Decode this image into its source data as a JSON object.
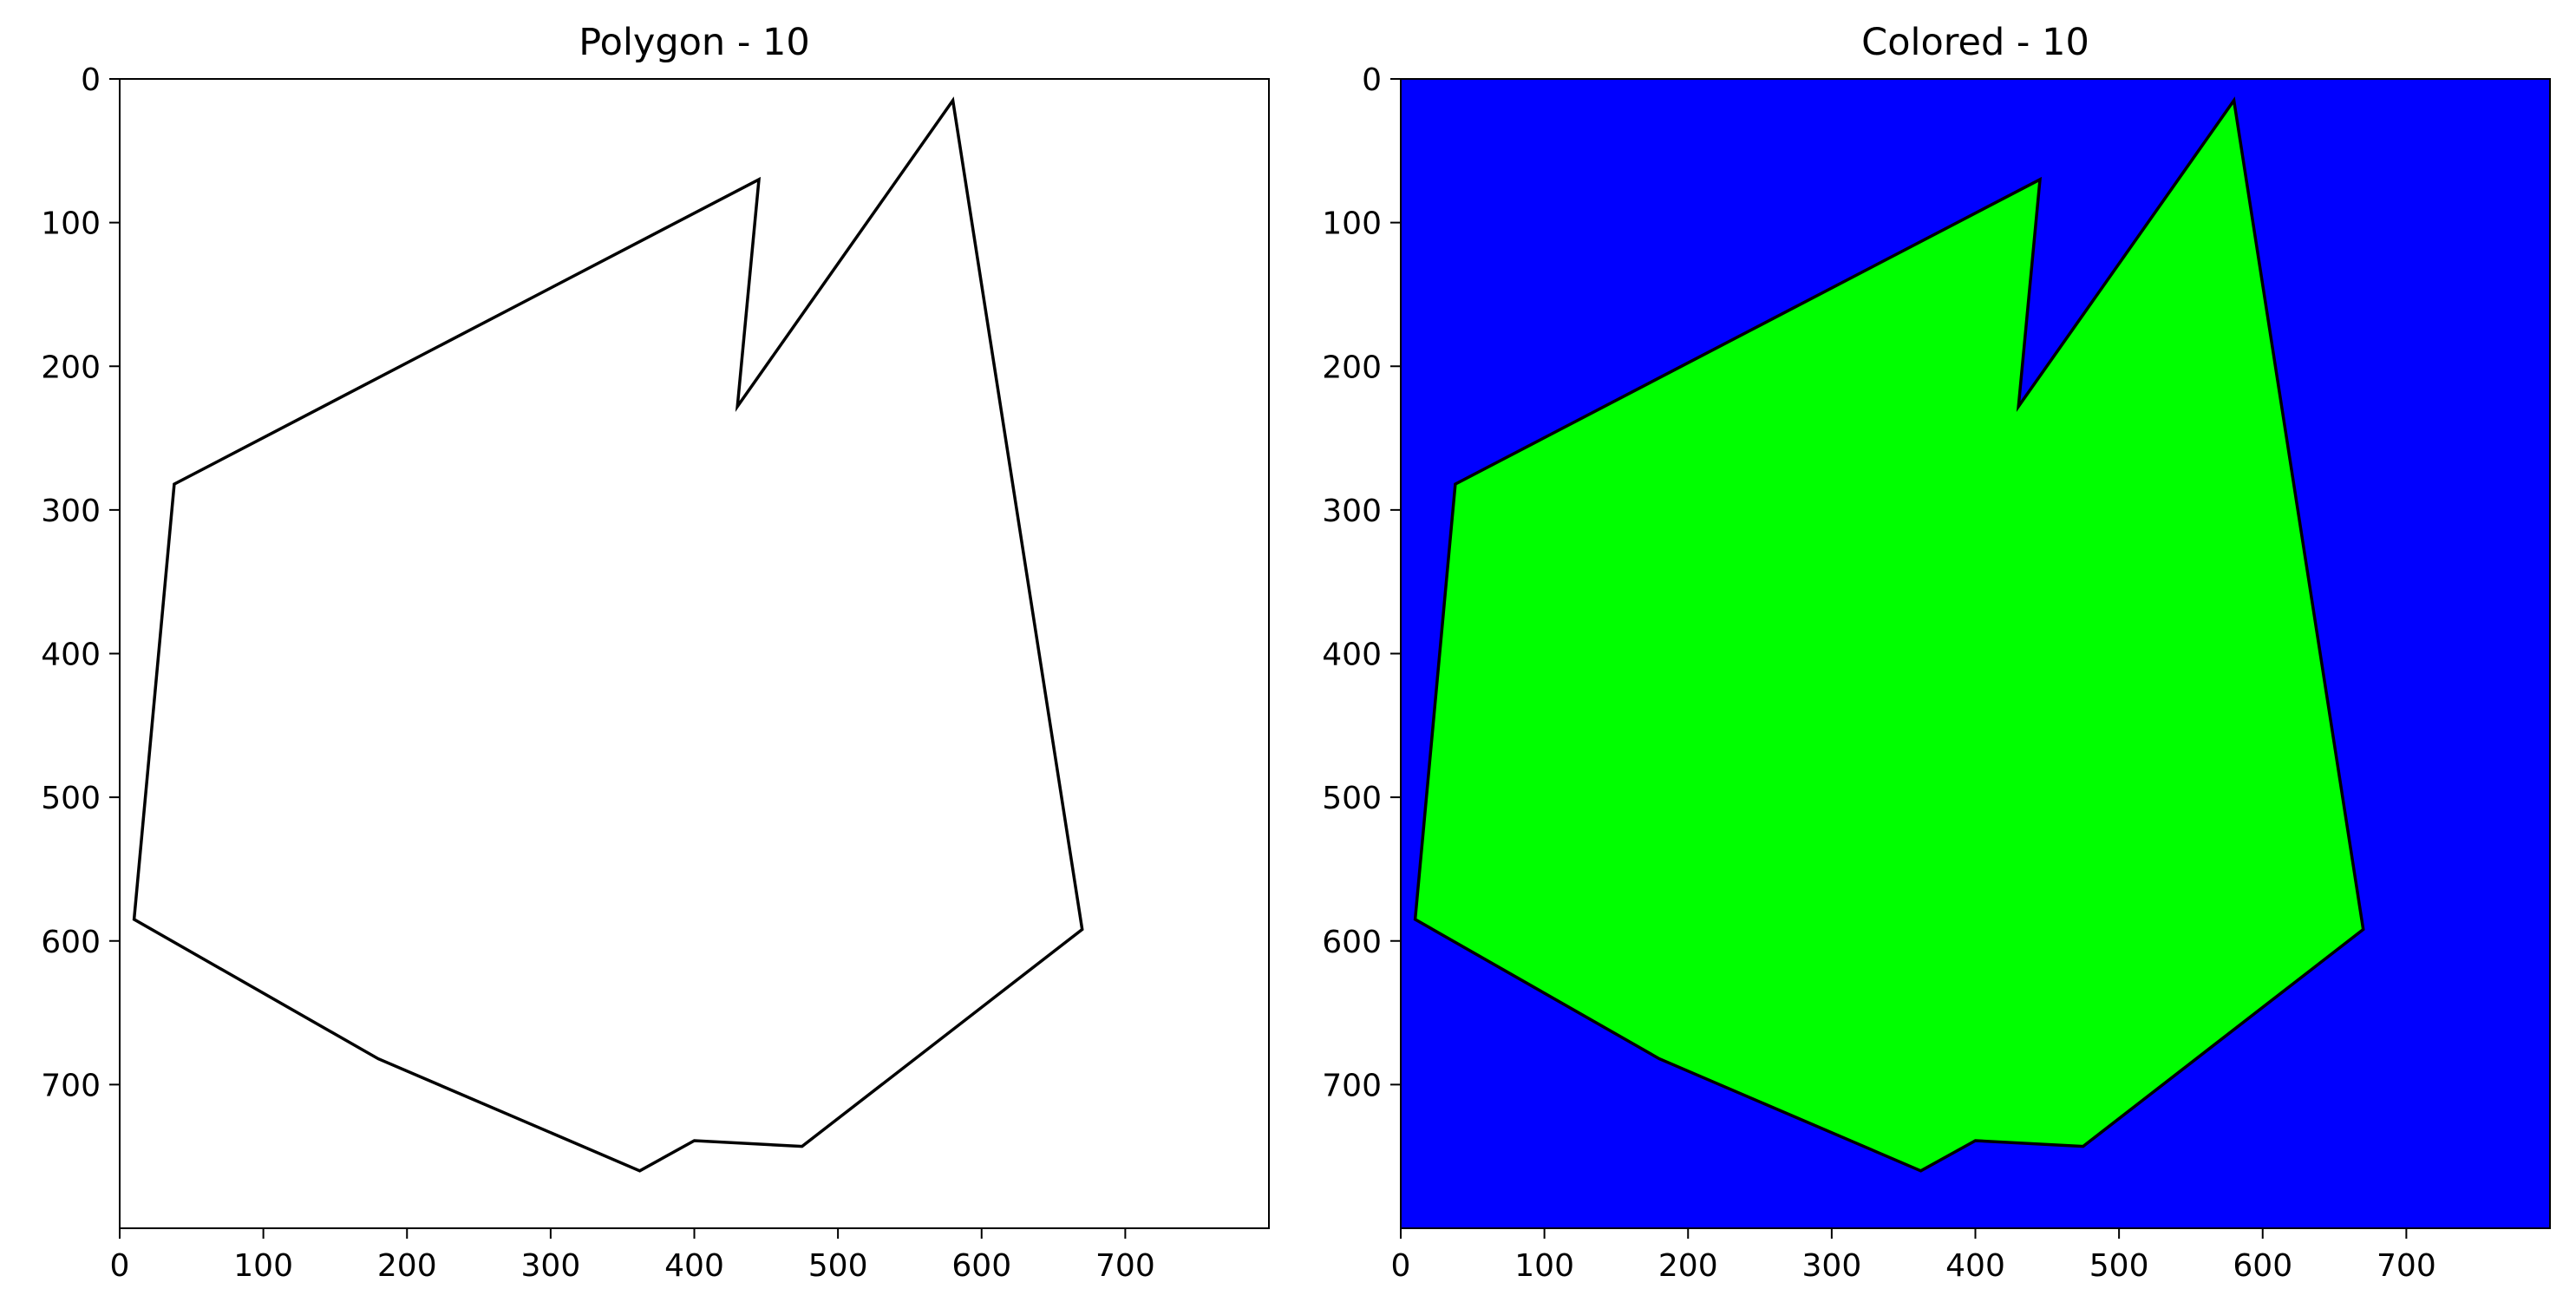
{
  "chart_data": [
    {
      "type": "polygon-outline",
      "title": "Polygon - 10",
      "xlim": [
        0,
        800
      ],
      "ylim": [
        800,
        0
      ],
      "y_axis_inverted": true,
      "xticks": [
        0,
        100,
        200,
        300,
        400,
        500,
        600,
        700
      ],
      "yticks": [
        0,
        100,
        200,
        300,
        400,
        500,
        600,
        700
      ],
      "background_color": "#ffffff",
      "outline_color": "#000000",
      "vertices": [
        [
          580,
          15
        ],
        [
          670,
          592
        ],
        [
          475,
          743
        ],
        [
          400,
          739
        ],
        [
          362,
          760
        ],
        [
          180,
          682
        ],
        [
          10,
          585
        ],
        [
          38,
          282
        ],
        [
          445,
          70
        ],
        [
          430,
          228
        ]
      ]
    },
    {
      "type": "polygon-filled",
      "title": "Colored - 10",
      "xlim": [
        0,
        800
      ],
      "ylim": [
        800,
        0
      ],
      "y_axis_inverted": true,
      "xticks": [
        0,
        100,
        200,
        300,
        400,
        500,
        600,
        700
      ],
      "yticks": [
        0,
        100,
        200,
        300,
        400,
        500,
        600,
        700
      ],
      "background_color": "#0000ff",
      "fill_color": "#00ff00",
      "outline_color": "#000000",
      "vertices": [
        [
          580,
          15
        ],
        [
          670,
          592
        ],
        [
          475,
          743
        ],
        [
          400,
          739
        ],
        [
          362,
          760
        ],
        [
          180,
          682
        ],
        [
          10,
          585
        ],
        [
          38,
          282
        ],
        [
          445,
          70
        ],
        [
          430,
          228
        ]
      ]
    }
  ]
}
